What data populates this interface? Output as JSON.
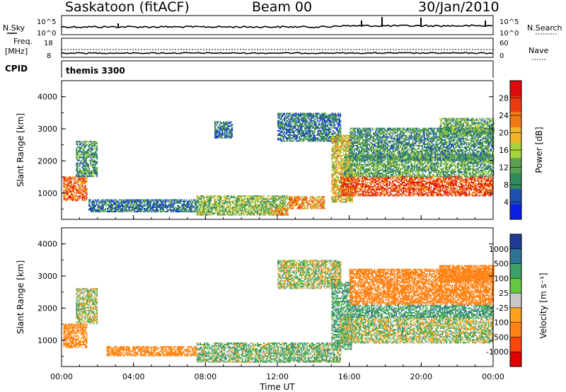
{
  "header": {
    "station": "Saskatoon (fitACF)",
    "beam": "Beam 00",
    "date": "30/Jan/2010"
  },
  "nsky_panel": {
    "left_label": "N.Sky",
    "left_ticks": [
      "10^5",
      "10^0"
    ],
    "right_label": "N.Search",
    "right_ticks": [
      "10^5",
      "10^0"
    ]
  },
  "freq_panel": {
    "left_label": "Freq.",
    "left_unit": "[MHz]",
    "left_ticks": [
      "18",
      "8"
    ],
    "right_label": "Nave",
    "right_ticks": [
      "60",
      "0"
    ]
  },
  "cpid": {
    "label": "CPID",
    "value": "themis 3300"
  },
  "colors": {
    "power_scale": [
      "#0a1ee6",
      "#1e50b4",
      "#2e8a5a",
      "#5aa050",
      "#a8d23c",
      "#f0b428",
      "#f07814",
      "#eb3c0f",
      "#dc0a0a"
    ],
    "velocity_scale": [
      "#1e3c96",
      "#2d7396",
      "#3ca064",
      "#64c83c",
      "#c8c8c8",
      "#ffa01e",
      "#ff8214",
      "#ff460a",
      "#e10000"
    ],
    "ground_scatter": "#b4b4b4"
  },
  "chart_data": [
    {
      "type": "heatmap",
      "panel": "power",
      "x_label": "Time UT",
      "y_label": "Slant Range [km]",
      "x_range_hours": [
        0,
        24
      ],
      "y_range_km": [
        180,
        4500
      ],
      "x_ticks": [
        "00:00",
        "04:00",
        "08:00",
        "12:00",
        "16:00",
        "20:00",
        "00:00"
      ],
      "y_ticks": [
        "1000",
        "2000",
        "3000",
        "4000"
      ],
      "colorbar": {
        "label": "Power [dB]",
        "range": [
          0,
          32
        ],
        "ticks": [
          "4",
          "8",
          "12",
          "16",
          "20",
          "24",
          "28"
        ]
      },
      "echo_regions": [
        {
          "t": [
            0.1,
            1.4
          ],
          "r": [
            750,
            1500
          ],
          "value": 24
        },
        {
          "t": [
            0.8,
            2.0
          ],
          "r": [
            1500,
            2600
          ],
          "value": 10
        },
        {
          "t": [
            1.5,
            7.5
          ],
          "r": [
            400,
            800
          ],
          "value": 8
        },
        {
          "t": [
            7.5,
            12.6
          ],
          "r": [
            300,
            900
          ],
          "value": 14
        },
        {
          "t": [
            11.6,
            12.6
          ],
          "r": [
            300,
            500
          ],
          "value": 22
        },
        {
          "t": [
            12.6,
            14.6
          ],
          "r": [
            500,
            900
          ],
          "value": 22
        },
        {
          "t": [
            8.5,
            9.5
          ],
          "r": [
            2700,
            3200
          ],
          "value": 8
        },
        {
          "t": [
            12.0,
            15.5
          ],
          "r": [
            2600,
            3500
          ],
          "value": 8
        },
        {
          "t": [
            15.0,
            16.2
          ],
          "r": [
            700,
            2800
          ],
          "value": 18
        },
        {
          "t": [
            15.5,
            24.0
          ],
          "r": [
            900,
            1500
          ],
          "value": 26
        },
        {
          "t": [
            15.7,
            24.0
          ],
          "r": [
            1500,
            2200
          ],
          "value": 12
        },
        {
          "t": [
            16.0,
            24.0
          ],
          "r": [
            2000,
            3000
          ],
          "value": 10
        },
        {
          "t": [
            21.0,
            24.0
          ],
          "r": [
            2800,
            3300
          ],
          "value": 12
        }
      ]
    },
    {
      "type": "heatmap",
      "panel": "velocity",
      "x_label": "Time UT",
      "y_label": "Slant Range [km]",
      "x_range_hours": [
        0,
        24
      ],
      "y_range_km": [
        180,
        4500
      ],
      "x_ticks": [
        "00:00",
        "04:00",
        "08:00",
        "12:00",
        "16:00",
        "20:00",
        "00:00"
      ],
      "y_ticks": [
        "1000",
        "2000",
        "3000",
        "4000"
      ],
      "colorbar": {
        "label": "Velocity [m s⁻¹]",
        "ticks": [
          "1000",
          "500",
          "100",
          "25",
          "-25",
          "-100",
          "-500",
          "-1000"
        ]
      },
      "echo_regions": [
        {
          "t": [
            0.1,
            1.4
          ],
          "r": [
            750,
            1500
          ],
          "value": -150
        },
        {
          "t": [
            0.8,
            2.0
          ],
          "r": [
            1500,
            2600
          ],
          "value": 0
        },
        {
          "t": [
            2.5,
            7.5
          ],
          "r": [
            500,
            800
          ],
          "value": -150
        },
        {
          "t": [
            7.5,
            15.5
          ],
          "r": [
            300,
            900
          ],
          "value": 30
        },
        {
          "t": [
            12.0,
            15.5
          ],
          "r": [
            2600,
            3500
          ],
          "value": 0
        },
        {
          "t": [
            15.0,
            16.2
          ],
          "r": [
            700,
            2800
          ],
          "value": 50
        },
        {
          "t": [
            15.5,
            24.0
          ],
          "r": [
            900,
            1700
          ],
          "value": 0
        },
        {
          "t": [
            16.0,
            24.0
          ],
          "r": [
            1700,
            2100
          ],
          "value": 60
        },
        {
          "t": [
            16.0,
            24.0
          ],
          "r": [
            2100,
            3200
          ],
          "value": -200
        },
        {
          "t": [
            21.0,
            24.0
          ],
          "r": [
            2800,
            3300
          ],
          "value": -200
        }
      ]
    }
  ]
}
